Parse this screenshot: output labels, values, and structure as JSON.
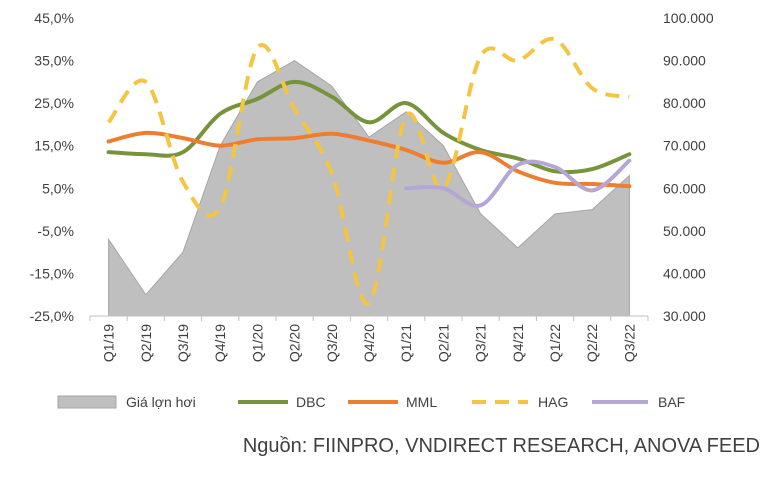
{
  "chart_data": {
    "type": "line",
    "categories": [
      "Q1/19",
      "Q2/19",
      "Q3/19",
      "Q4/19",
      "Q1/20",
      "Q2/20",
      "Q3/20",
      "Q4/20",
      "Q1/21",
      "Q2/21",
      "Q3/21",
      "Q4/21",
      "Q1/22",
      "Q2/22",
      "Q3/22"
    ],
    "y_left": {
      "ticks": [
        "45,0%",
        "35,0%",
        "25,0%",
        "15,0%",
        "5,0%",
        "-5,0%",
        "-15,0%",
        "-25,0%"
      ],
      "range": [
        -25,
        45
      ]
    },
    "y_right": {
      "ticks": [
        "100.000",
        "90.000",
        "80.000",
        "70.000",
        "60.000",
        "50.000",
        "40.000",
        "30.000"
      ],
      "range": [
        30000,
        100000
      ]
    },
    "series": [
      {
        "name": "Giá lợn hơi",
        "kind": "area",
        "axis": "right",
        "color": "#bfbfbf",
        "values": [
          48000,
          35000,
          45000,
          70000,
          85000,
          90000,
          84000,
          72000,
          78000,
          70000,
          54000,
          46000,
          54000,
          55000,
          63000
        ]
      },
      {
        "name": "DBC",
        "kind": "line",
        "axis": "left",
        "color": "#77933c",
        "dash": false,
        "values": [
          13.5,
          13.0,
          13.5,
          22.5,
          26.0,
          30.0,
          26.5,
          20.5,
          25.0,
          18.0,
          14.0,
          12.0,
          9.0,
          9.5,
          13.0
        ]
      },
      {
        "name": "MML",
        "kind": "line",
        "axis": "left",
        "color": "#ed7d31",
        "dash": false,
        "values": [
          16.0,
          18.0,
          16.8,
          15.0,
          16.5,
          16.8,
          17.8,
          16.2,
          14.0,
          11.0,
          13.5,
          9.0,
          6.3,
          6.0,
          5.5
        ]
      },
      {
        "name": "HAG",
        "kind": "line",
        "axis": "left",
        "color": "#f4c542",
        "dash": true,
        "values": [
          20.5,
          30.0,
          6.5,
          0.5,
          38.0,
          23.5,
          8.5,
          -22.0,
          22.0,
          5.0,
          36.0,
          35.0,
          40.0,
          28.5,
          26.5
        ]
      },
      {
        "name": "BAF",
        "kind": "line",
        "axis": "left",
        "color": "#b4a7d6",
        "dash": false,
        "values": [
          null,
          null,
          null,
          null,
          null,
          null,
          null,
          null,
          5.0,
          5.0,
          1.0,
          10.5,
          10.0,
          4.5,
          11.5
        ]
      }
    ],
    "legend": "bottom"
  },
  "source_text": "Nguồn: FIINPRO, VNDIRECT RESEARCH, ANOVA FEED"
}
